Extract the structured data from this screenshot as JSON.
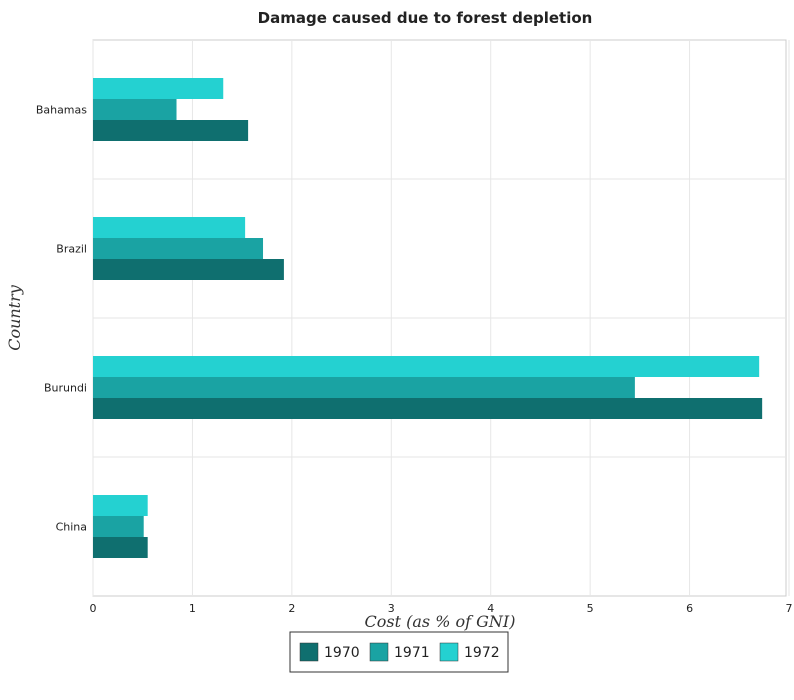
{
  "chart_data": {
    "type": "bar",
    "orientation": "horizontal",
    "title": "Damage caused due to forest depletion",
    "xlabel": "Cost (as % of GNI)",
    "ylabel": "Country",
    "categories": [
      "Bahamas",
      "Brazil",
      "Burundi",
      "China"
    ],
    "series": [
      {
        "name": "1970",
        "color": "#0f6f6f",
        "values": [
          1.56,
          1.92,
          6.73,
          0.55
        ]
      },
      {
        "name": "1971",
        "color": "#1aa3a3",
        "values": [
          0.84,
          1.71,
          5.45,
          0.51
        ]
      },
      {
        "name": "1972",
        "color": "#24d1d1",
        "values": [
          1.31,
          1.53,
          6.7,
          0.55
        ]
      }
    ],
    "xlim": [
      0,
      7
    ],
    "xticks": [
      0,
      1,
      2,
      3,
      4,
      5,
      6,
      7
    ],
    "grid": true,
    "legend_position": "bottom"
  }
}
